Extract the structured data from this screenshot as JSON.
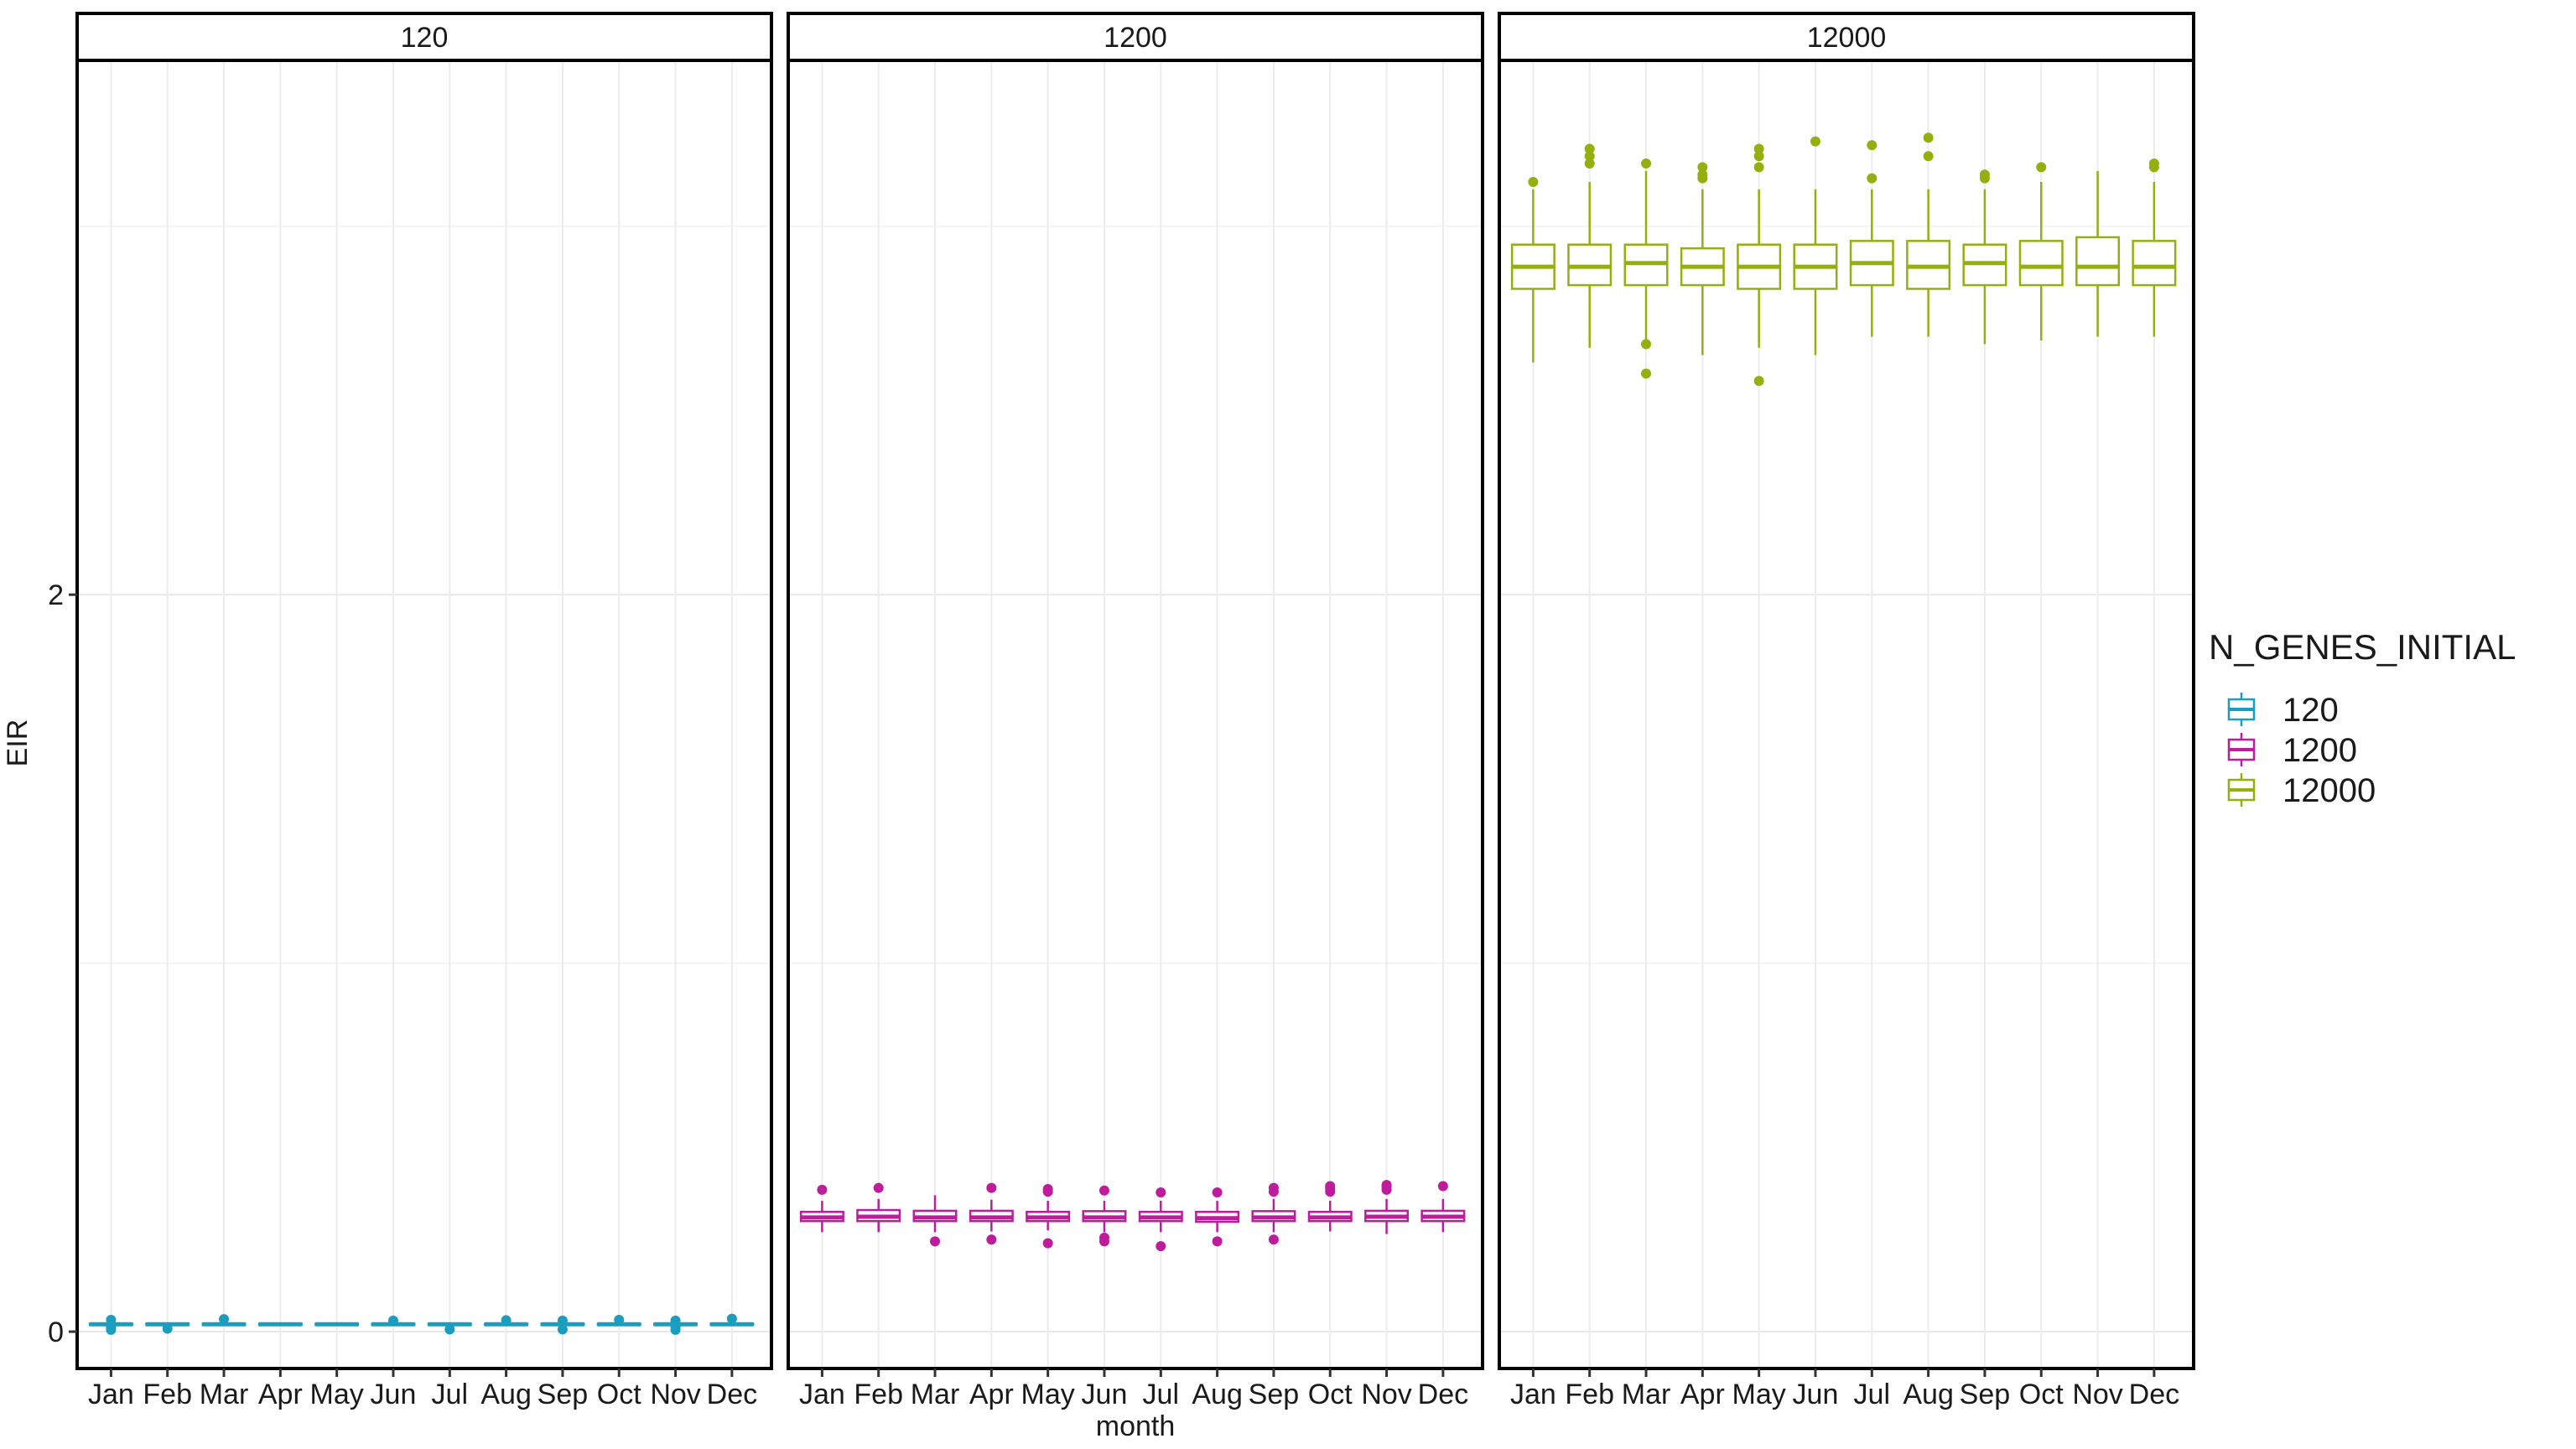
{
  "chart_data": {
    "type": "boxplot",
    "facet_by": "N_GENES_INITIAL",
    "xlabel": "month",
    "ylabel": "EIR",
    "ylim": [
      -0.1,
      3.45
    ],
    "y_ticks": [
      0,
      2
    ],
    "grid": true,
    "months": [
      "Jan",
      "Feb",
      "Mar",
      "Apr",
      "May",
      "Jun",
      "Jul",
      "Aug",
      "Sep",
      "Oct",
      "Nov",
      "Dec"
    ],
    "legend": {
      "title": "N_GENES_INITIAL",
      "position": "right",
      "entries": [
        {
          "label": "120",
          "color": "#1B9DC0"
        },
        {
          "label": "1200",
          "color": "#BE1C9D"
        },
        {
          "label": "12000",
          "color": "#94B00F"
        }
      ]
    },
    "facets": [
      {
        "label": "120",
        "color": "#1B9DC0",
        "boxes": [
          {
            "month": "Jan",
            "min": 0.015,
            "q1": 0.018,
            "median": 0.02,
            "q3": 0.022,
            "max": 0.025,
            "outliers": [
              0.005,
              0.012,
              0.032
            ]
          },
          {
            "month": "Feb",
            "min": 0.015,
            "q1": 0.018,
            "median": 0.02,
            "q3": 0.022,
            "max": 0.025,
            "outliers": [
              0.008
            ]
          },
          {
            "month": "Mar",
            "min": 0.015,
            "q1": 0.018,
            "median": 0.02,
            "q3": 0.022,
            "max": 0.025,
            "outliers": [
              0.034
            ]
          },
          {
            "month": "Apr",
            "min": 0.015,
            "q1": 0.018,
            "median": 0.02,
            "q3": 0.022,
            "max": 0.025,
            "outliers": []
          },
          {
            "month": "May",
            "min": 0.015,
            "q1": 0.018,
            "median": 0.02,
            "q3": 0.022,
            "max": 0.025,
            "outliers": []
          },
          {
            "month": "Jun",
            "min": 0.015,
            "q1": 0.018,
            "median": 0.02,
            "q3": 0.022,
            "max": 0.025,
            "outliers": [
              0.03
            ]
          },
          {
            "month": "Jul",
            "min": 0.015,
            "q1": 0.018,
            "median": 0.02,
            "q3": 0.022,
            "max": 0.025,
            "outliers": [
              0.006
            ]
          },
          {
            "month": "Aug",
            "min": 0.015,
            "q1": 0.018,
            "median": 0.02,
            "q3": 0.022,
            "max": 0.025,
            "outliers": [
              0.031
            ]
          },
          {
            "month": "Sep",
            "min": 0.015,
            "q1": 0.018,
            "median": 0.02,
            "q3": 0.022,
            "max": 0.025,
            "outliers": [
              0.006,
              0.03
            ]
          },
          {
            "month": "Oct",
            "min": 0.015,
            "q1": 0.018,
            "median": 0.02,
            "q3": 0.022,
            "max": 0.025,
            "outliers": [
              0.032
            ]
          },
          {
            "month": "Nov",
            "min": 0.015,
            "q1": 0.018,
            "median": 0.02,
            "q3": 0.022,
            "max": 0.025,
            "outliers": [
              0.005,
              0.012,
              0.03
            ]
          },
          {
            "month": "Dec",
            "min": 0.015,
            "q1": 0.018,
            "median": 0.02,
            "q3": 0.022,
            "max": 0.025,
            "outliers": [
              0.035
            ]
          }
        ]
      },
      {
        "label": "1200",
        "color": "#BE1C9D",
        "boxes": [
          {
            "month": "Jan",
            "min": 0.27,
            "q1": 0.3,
            "median": 0.31,
            "q3": 0.325,
            "max": 0.355,
            "outliers": [
              0.385
            ]
          },
          {
            "month": "Feb",
            "min": 0.27,
            "q1": 0.3,
            "median": 0.312,
            "q3": 0.33,
            "max": 0.36,
            "outliers": [
              0.39
            ]
          },
          {
            "month": "Mar",
            "min": 0.27,
            "q1": 0.3,
            "median": 0.31,
            "q3": 0.328,
            "max": 0.37,
            "outliers": [
              0.245
            ]
          },
          {
            "month": "Apr",
            "min": 0.272,
            "q1": 0.3,
            "median": 0.31,
            "q3": 0.328,
            "max": 0.358,
            "outliers": [
              0.25,
              0.39
            ]
          },
          {
            "month": "May",
            "min": 0.275,
            "q1": 0.3,
            "median": 0.31,
            "q3": 0.325,
            "max": 0.355,
            "outliers": [
              0.24,
              0.38,
              0.387
            ]
          },
          {
            "month": "Jun",
            "min": 0.27,
            "q1": 0.3,
            "median": 0.31,
            "q3": 0.327,
            "max": 0.355,
            "outliers": [
              0.245,
              0.255,
              0.383
            ]
          },
          {
            "month": "Jul",
            "min": 0.27,
            "q1": 0.3,
            "median": 0.31,
            "q3": 0.325,
            "max": 0.355,
            "outliers": [
              0.232,
              0.378
            ]
          },
          {
            "month": "Aug",
            "min": 0.27,
            "q1": 0.298,
            "median": 0.308,
            "q3": 0.325,
            "max": 0.355,
            "outliers": [
              0.245,
              0.378
            ]
          },
          {
            "month": "Sep",
            "min": 0.27,
            "q1": 0.3,
            "median": 0.31,
            "q3": 0.327,
            "max": 0.36,
            "outliers": [
              0.25,
              0.38,
              0.39
            ]
          },
          {
            "month": "Oct",
            "min": 0.272,
            "q1": 0.3,
            "median": 0.31,
            "q3": 0.325,
            "max": 0.355,
            "outliers": [
              0.38,
              0.388,
              0.395
            ]
          },
          {
            "month": "Nov",
            "min": 0.265,
            "q1": 0.3,
            "median": 0.312,
            "q3": 0.328,
            "max": 0.36,
            "outliers": [
              0.385,
              0.393,
              0.398
            ]
          },
          {
            "month": "Dec",
            "min": 0.27,
            "q1": 0.3,
            "median": 0.312,
            "q3": 0.328,
            "max": 0.36,
            "outliers": [
              0.395
            ]
          }
        ]
      },
      {
        "label": "12000",
        "color": "#94B00F",
        "boxes": [
          {
            "month": "Jan",
            "min": 2.63,
            "q1": 2.83,
            "median": 2.89,
            "q3": 2.95,
            "max": 3.1,
            "outliers": [
              3.12
            ]
          },
          {
            "month": "Feb",
            "min": 2.67,
            "q1": 2.84,
            "median": 2.89,
            "q3": 2.95,
            "max": 3.12,
            "outliers": [
              3.17,
              3.19,
              3.21
            ]
          },
          {
            "month": "Mar",
            "min": 2.67,
            "q1": 2.84,
            "median": 2.9,
            "q3": 2.95,
            "max": 3.15,
            "outliers": [
              2.6,
              2.68,
              3.17
            ]
          },
          {
            "month": "Apr",
            "min": 2.65,
            "q1": 2.84,
            "median": 2.89,
            "q3": 2.94,
            "max": 3.1,
            "outliers": [
              3.13,
              3.14,
              3.16
            ]
          },
          {
            "month": "May",
            "min": 2.67,
            "q1": 2.83,
            "median": 2.89,
            "q3": 2.95,
            "max": 3.1,
            "outliers": [
              2.58,
              3.16,
              3.19,
              3.21
            ]
          },
          {
            "month": "Jun",
            "min": 2.65,
            "q1": 2.83,
            "median": 2.89,
            "q3": 2.95,
            "max": 3.1,
            "outliers": [
              3.23
            ]
          },
          {
            "month": "Jul",
            "min": 2.7,
            "q1": 2.84,
            "median": 2.9,
            "q3": 2.96,
            "max": 3.1,
            "outliers": [
              3.13,
              3.22
            ]
          },
          {
            "month": "Aug",
            "min": 2.7,
            "q1": 2.83,
            "median": 2.89,
            "q3": 2.96,
            "max": 3.1,
            "outliers": [
              3.19,
              3.24
            ]
          },
          {
            "month": "Sep",
            "min": 2.68,
            "q1": 2.84,
            "median": 2.9,
            "q3": 2.95,
            "max": 3.1,
            "outliers": [
              3.13,
              3.14
            ]
          },
          {
            "month": "Oct",
            "min": 2.69,
            "q1": 2.84,
            "median": 2.89,
            "q3": 2.96,
            "max": 3.12,
            "outliers": [
              3.16
            ]
          },
          {
            "month": "Nov",
            "min": 2.7,
            "q1": 2.84,
            "median": 2.89,
            "q3": 2.97,
            "max": 3.15,
            "outliers": []
          },
          {
            "month": "Dec",
            "min": 2.7,
            "q1": 2.84,
            "median": 2.89,
            "q3": 2.96,
            "max": 3.12,
            "outliers": [
              3.16,
              3.17
            ]
          }
        ]
      }
    ]
  }
}
